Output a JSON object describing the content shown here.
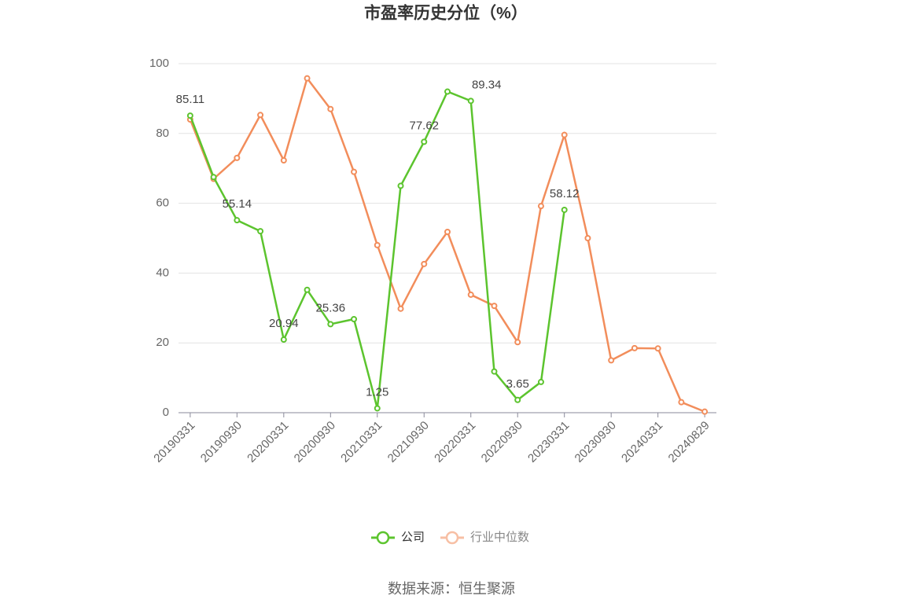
{
  "chart_data": {
    "type": "line",
    "title": "市盈率历史分位（%）",
    "categories": [
      "20190331",
      null,
      "20190930",
      null,
      "20200331",
      null,
      "20200930",
      null,
      "20210331",
      null,
      "20210930",
      null,
      "20220331",
      null,
      "20220930",
      null,
      "20230331",
      null,
      "20230930",
      null,
      "20240331",
      null,
      "20240829"
    ],
    "series": [
      {
        "name": "公司",
        "color": "#5cc42e",
        "values": [
          85.11,
          67.5,
          55.14,
          52,
          20.94,
          35.2,
          25.36,
          26.8,
          1.25,
          65,
          77.62,
          92,
          89.34,
          11.8,
          3.65,
          8.8,
          58.12,
          null,
          null,
          null,
          null,
          null,
          null
        ],
        "value_labels": [
          "85.11",
          null,
          "55.14",
          null,
          "20.94",
          null,
          "25.36",
          null,
          "1.25",
          null,
          "77.62",
          null,
          "89.34",
          null,
          "3.65",
          null,
          "58.12",
          null,
          null,
          null,
          null,
          null,
          null
        ]
      },
      {
        "name": "行业中位数",
        "color": "#f28d5b",
        "values": [
          84,
          67,
          73,
          85.3,
          72.3,
          95.8,
          87,
          69,
          48,
          29.8,
          42.6,
          51.8,
          33.8,
          30.6,
          20.2,
          59.2,
          79.6,
          50,
          15,
          18.5,
          18.4,
          3,
          0.3
        ]
      }
    ],
    "ylim": [
      0,
      100
    ],
    "yticks": [
      0,
      20,
      40,
      60,
      80,
      100
    ],
    "grid": true,
    "legend": "bottom",
    "source": "数据来源：恒生聚源"
  }
}
